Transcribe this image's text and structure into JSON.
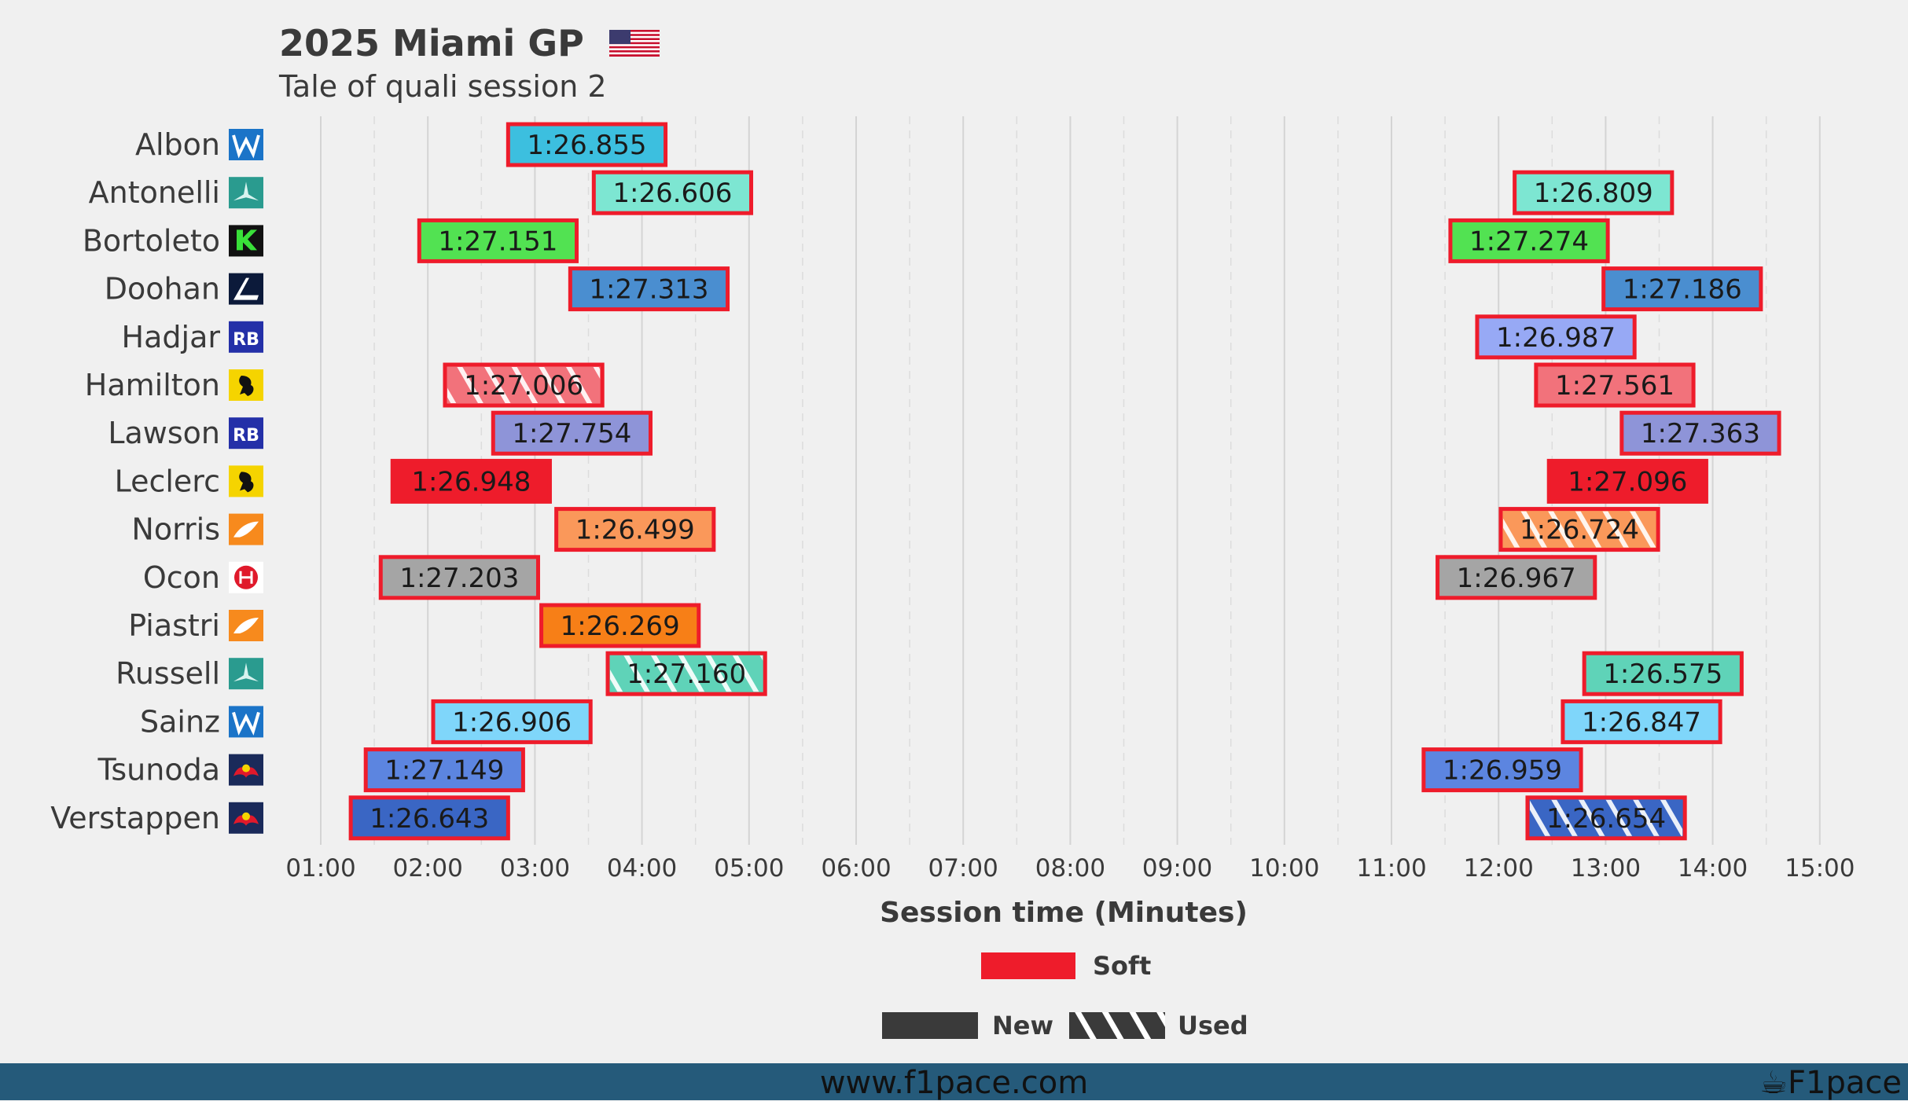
{
  "header": {
    "title": "2025 Miami GP",
    "subtitle": "Tale of quali session 2",
    "flag_icon": "us-flag-icon"
  },
  "footer": {
    "url": "www.f1pace.com",
    "brand": "F1pace",
    "brand_icon": "cup-icon"
  },
  "colors": {
    "background": "#f0f0f0",
    "soft": "#ee1c2b",
    "footer": "#255a7a",
    "grid": "#d4d4d4",
    "text": "#3a3a3a"
  },
  "chart_data": {
    "type": "bar",
    "orientation": "horizontal-gantt",
    "title": "2025 Miami GP",
    "subtitle": "Tale of quali session 2",
    "xlabel": "Session time (Minutes)",
    "xlim": [
      0.8,
      15.5
    ],
    "x_ticks": [
      1,
      2,
      3,
      4,
      5,
      6,
      7,
      8,
      9,
      10,
      11,
      12,
      13,
      14,
      15
    ],
    "x_tick_labels": [
      "01:00",
      "02:00",
      "03:00",
      "04:00",
      "05:00",
      "06:00",
      "07:00",
      "08:00",
      "09:00",
      "10:00",
      "11:00",
      "12:00",
      "13:00",
      "14:00",
      "15:00"
    ],
    "grid": true,
    "legend": {
      "compound": [
        {
          "label": "Soft",
          "color": "#ee1c2b"
        }
      ],
      "tyre_age": [
        {
          "label": "New"
        },
        {
          "label": "Used"
        }
      ],
      "placement": "bottom-center"
    },
    "drivers": [
      {
        "name": "Albon",
        "team": "williams",
        "team_icon": "williams-logo-icon",
        "color": "#3cbfdf",
        "laps": [
          {
            "start": 2.75,
            "end": 4.22,
            "time": "1:26.855",
            "tyre": "Soft",
            "used": false
          }
        ]
      },
      {
        "name": "Antonelli",
        "team": "mercedes",
        "team_icon": "mercedes-logo-icon",
        "color": "#7de6d2",
        "laps": [
          {
            "start": 3.55,
            "end": 5.02,
            "time": "1:26.606",
            "tyre": "Soft",
            "used": false
          },
          {
            "start": 12.15,
            "end": 13.62,
            "time": "1:26.809",
            "tyre": "Soft",
            "used": false
          }
        ]
      },
      {
        "name": "Bortoleto",
        "team": "sauber",
        "team_icon": "sauber-logo-icon",
        "color": "#52e252",
        "laps": [
          {
            "start": 1.92,
            "end": 3.39,
            "time": "1:27.151",
            "tyre": "Soft",
            "used": false
          },
          {
            "start": 11.55,
            "end": 13.02,
            "time": "1:27.274",
            "tyre": "Soft",
            "used": false
          }
        ]
      },
      {
        "name": "Doohan",
        "team": "alpine",
        "team_icon": "alpine-logo-icon",
        "color": "#4a8ed0",
        "laps": [
          {
            "start": 3.33,
            "end": 4.8,
            "time": "1:27.313",
            "tyre": "Soft",
            "used": false
          },
          {
            "start": 12.98,
            "end": 14.45,
            "time": "1:27.186",
            "tyre": "Soft",
            "used": false
          }
        ]
      },
      {
        "name": "Hadjar",
        "team": "racing-bulls",
        "team_icon": "racing-bulls-logo-icon",
        "color": "#97a9f5",
        "laps": [
          {
            "start": 11.8,
            "end": 13.27,
            "time": "1:26.987",
            "tyre": "Soft",
            "used": false
          }
        ]
      },
      {
        "name": "Hamilton",
        "team": "ferrari",
        "team_icon": "ferrari-logo-icon",
        "color": "#f2727b",
        "laps": [
          {
            "start": 2.16,
            "end": 3.63,
            "time": "1:27.006",
            "tyre": "Soft",
            "used": true
          },
          {
            "start": 12.35,
            "end": 13.82,
            "time": "1:27.561",
            "tyre": "Soft",
            "used": false
          }
        ]
      },
      {
        "name": "Lawson",
        "team": "racing-bulls",
        "team_icon": "racing-bulls-logo-icon",
        "color": "#8e94d8",
        "laps": [
          {
            "start": 2.61,
            "end": 4.08,
            "time": "1:27.754",
            "tyre": "Soft",
            "used": false
          },
          {
            "start": 13.15,
            "end": 14.62,
            "time": "1:27.363",
            "tyre": "Soft",
            "used": false
          }
        ]
      },
      {
        "name": "Leclerc",
        "team": "ferrari",
        "team_icon": "ferrari-logo-icon",
        "color": "#ee1c2b",
        "laps": [
          {
            "start": 1.67,
            "end": 3.14,
            "time": "1:26.948",
            "tyre": "Soft",
            "used": false
          },
          {
            "start": 12.47,
            "end": 13.94,
            "time": "1:27.096",
            "tyre": "Soft",
            "used": false
          }
        ]
      },
      {
        "name": "Norris",
        "team": "mclaren",
        "team_icon": "mclaren-logo-icon",
        "color": "#fa985a",
        "laps": [
          {
            "start": 3.2,
            "end": 4.67,
            "time": "1:26.499",
            "tyre": "Soft",
            "used": false
          },
          {
            "start": 12.02,
            "end": 13.49,
            "time": "1:26.724",
            "tyre": "Soft",
            "used": true
          }
        ]
      },
      {
        "name": "Ocon",
        "team": "haas",
        "team_icon": "haas-logo-icon",
        "color": "#a5a5a5",
        "laps": [
          {
            "start": 1.56,
            "end": 3.03,
            "time": "1:27.203",
            "tyre": "Soft",
            "used": false
          },
          {
            "start": 11.43,
            "end": 12.9,
            "time": "1:26.967",
            "tyre": "Soft",
            "used": false
          }
        ]
      },
      {
        "name": "Piastri",
        "team": "mclaren",
        "team_icon": "mclaren-logo-icon",
        "color": "#f77f17",
        "laps": [
          {
            "start": 3.06,
            "end": 4.53,
            "time": "1:26.269",
            "tyre": "Soft",
            "used": false
          }
        ]
      },
      {
        "name": "Russell",
        "team": "mercedes",
        "team_icon": "mercedes-logo-icon",
        "color": "#5fd3b8",
        "laps": [
          {
            "start": 3.68,
            "end": 5.15,
            "time": "1:27.160",
            "tyre": "Soft",
            "used": true
          },
          {
            "start": 12.8,
            "end": 14.27,
            "time": "1:26.575",
            "tyre": "Soft",
            "used": false
          }
        ]
      },
      {
        "name": "Sainz",
        "team": "williams",
        "team_icon": "williams-logo-icon",
        "color": "#7fd6fa",
        "laps": [
          {
            "start": 2.05,
            "end": 3.52,
            "time": "1:26.906",
            "tyre": "Soft",
            "used": false
          },
          {
            "start": 12.6,
            "end": 14.07,
            "time": "1:26.847",
            "tyre": "Soft",
            "used": false
          }
        ]
      },
      {
        "name": "Tsunoda",
        "team": "red-bull",
        "team_icon": "red-bull-logo-icon",
        "color": "#5c85e0",
        "laps": [
          {
            "start": 1.42,
            "end": 2.89,
            "time": "1:27.149",
            "tyre": "Soft",
            "used": false
          },
          {
            "start": 11.3,
            "end": 12.77,
            "time": "1:26.959",
            "tyre": "Soft",
            "used": false
          }
        ]
      },
      {
        "name": "Verstappen",
        "team": "red-bull",
        "team_icon": "red-bull-logo-icon",
        "color": "#3a66c4",
        "laps": [
          {
            "start": 1.28,
            "end": 2.75,
            "time": "1:26.643",
            "tyre": "Soft",
            "used": false
          },
          {
            "start": 12.27,
            "end": 13.74,
            "time": "1:26.654",
            "tyre": "Soft",
            "used": true
          }
        ]
      }
    ]
  }
}
